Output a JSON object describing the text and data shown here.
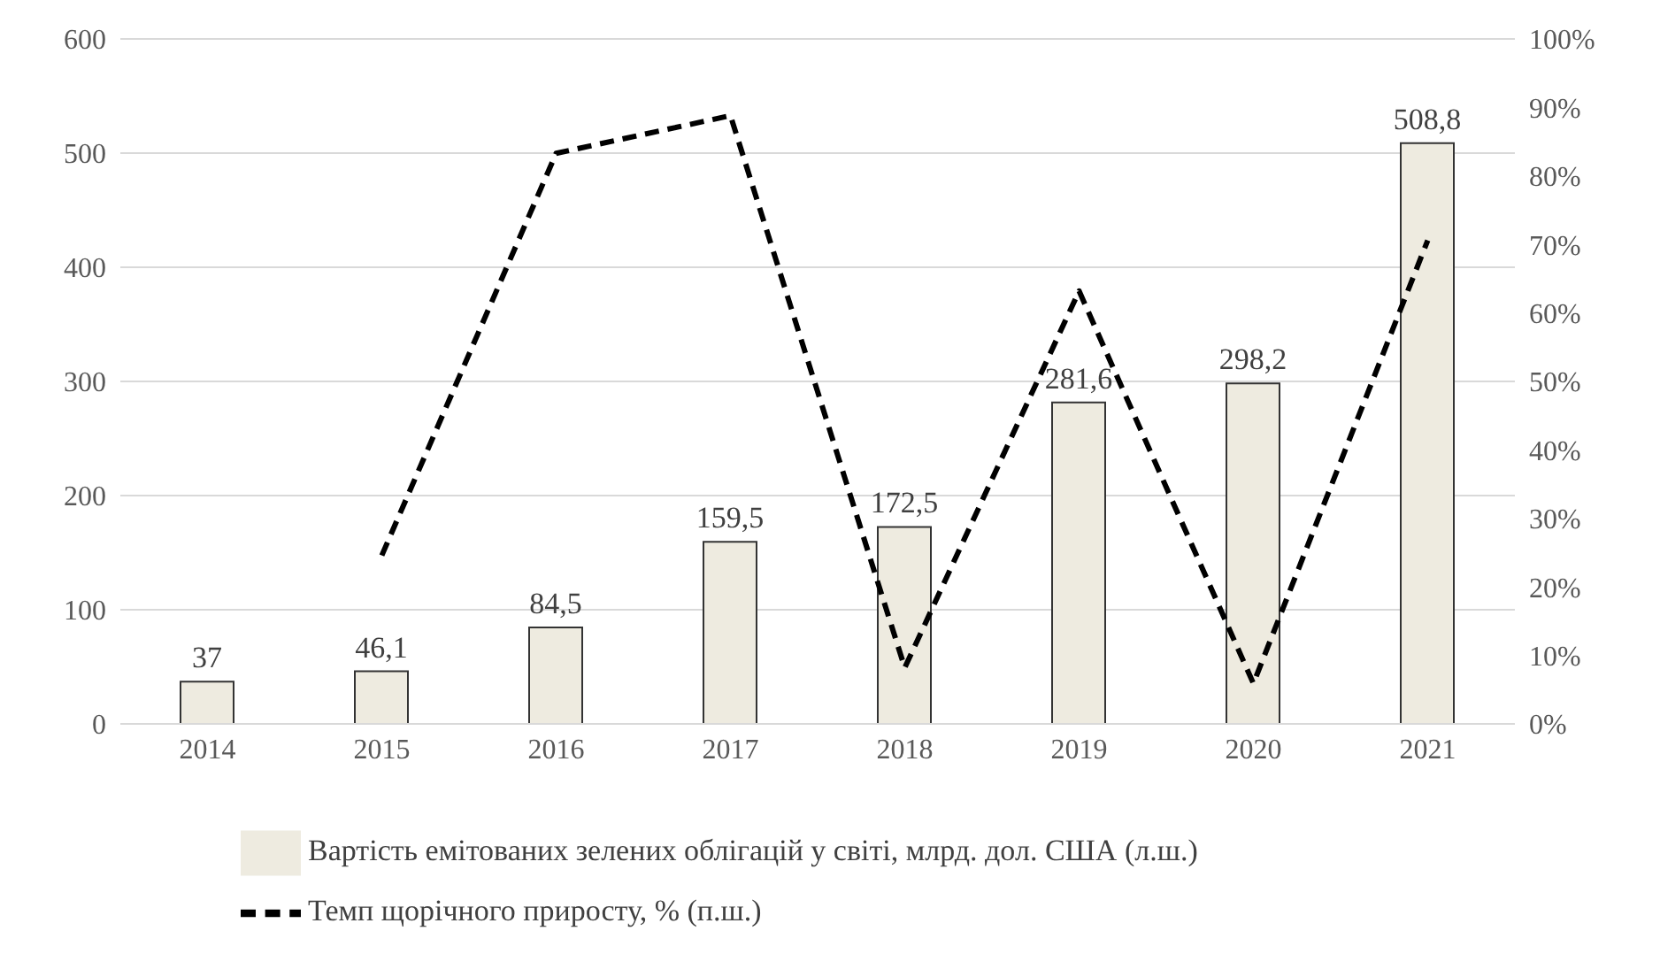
{
  "chart_data": {
    "type": "bar",
    "categories": [
      "2014",
      "2015",
      "2016",
      "2017",
      "2018",
      "2019",
      "2020",
      "2021"
    ],
    "series": [
      {
        "name": "Вартість емітованих зелених облігацій у світі, млрд. дол. США (л.ш.)",
        "color": "#eeebe0",
        "values": [
          37,
          46.1,
          84.5,
          159.5,
          172.5,
          281.6,
          298.2,
          508.8
        ],
        "value_labels": [
          "37",
          "46,1",
          "84,5",
          "159,5",
          "172,5",
          "281,6",
          "298,2",
          "508,8"
        ]
      },
      {
        "type": "line",
        "name": "Темп щорічного приросту, % (п.ш.)",
        "color": "#000000",
        "axis": "y2",
        "line_style": "dashed",
        "values": [
          null,
          24.6,
          83.3,
          88.8,
          8.2,
          63.2,
          5.9,
          70.6
        ]
      }
    ],
    "ylim": [
      0,
      600
    ],
    "yticks": [
      0,
      100,
      200,
      300,
      400,
      500,
      600
    ],
    "y2lim": [
      0,
      100
    ],
    "y2ticks": [
      {
        "value": 0,
        "label": "0%"
      },
      {
        "value": 10,
        "label": "10%"
      },
      {
        "value": 20,
        "label": "20%"
      },
      {
        "value": 30,
        "label": "30%"
      },
      {
        "value": 40,
        "label": "40%"
      },
      {
        "value": 50,
        "label": "50%"
      },
      {
        "value": 60,
        "label": "60%"
      },
      {
        "value": 70,
        "label": "70%"
      },
      {
        "value": 80,
        "label": "80%"
      },
      {
        "value": 90,
        "label": "90%"
      },
      {
        "value": 100,
        "label": "100%"
      }
    ],
    "grid": "y",
    "legend": "bottom",
    "marker": "none"
  }
}
